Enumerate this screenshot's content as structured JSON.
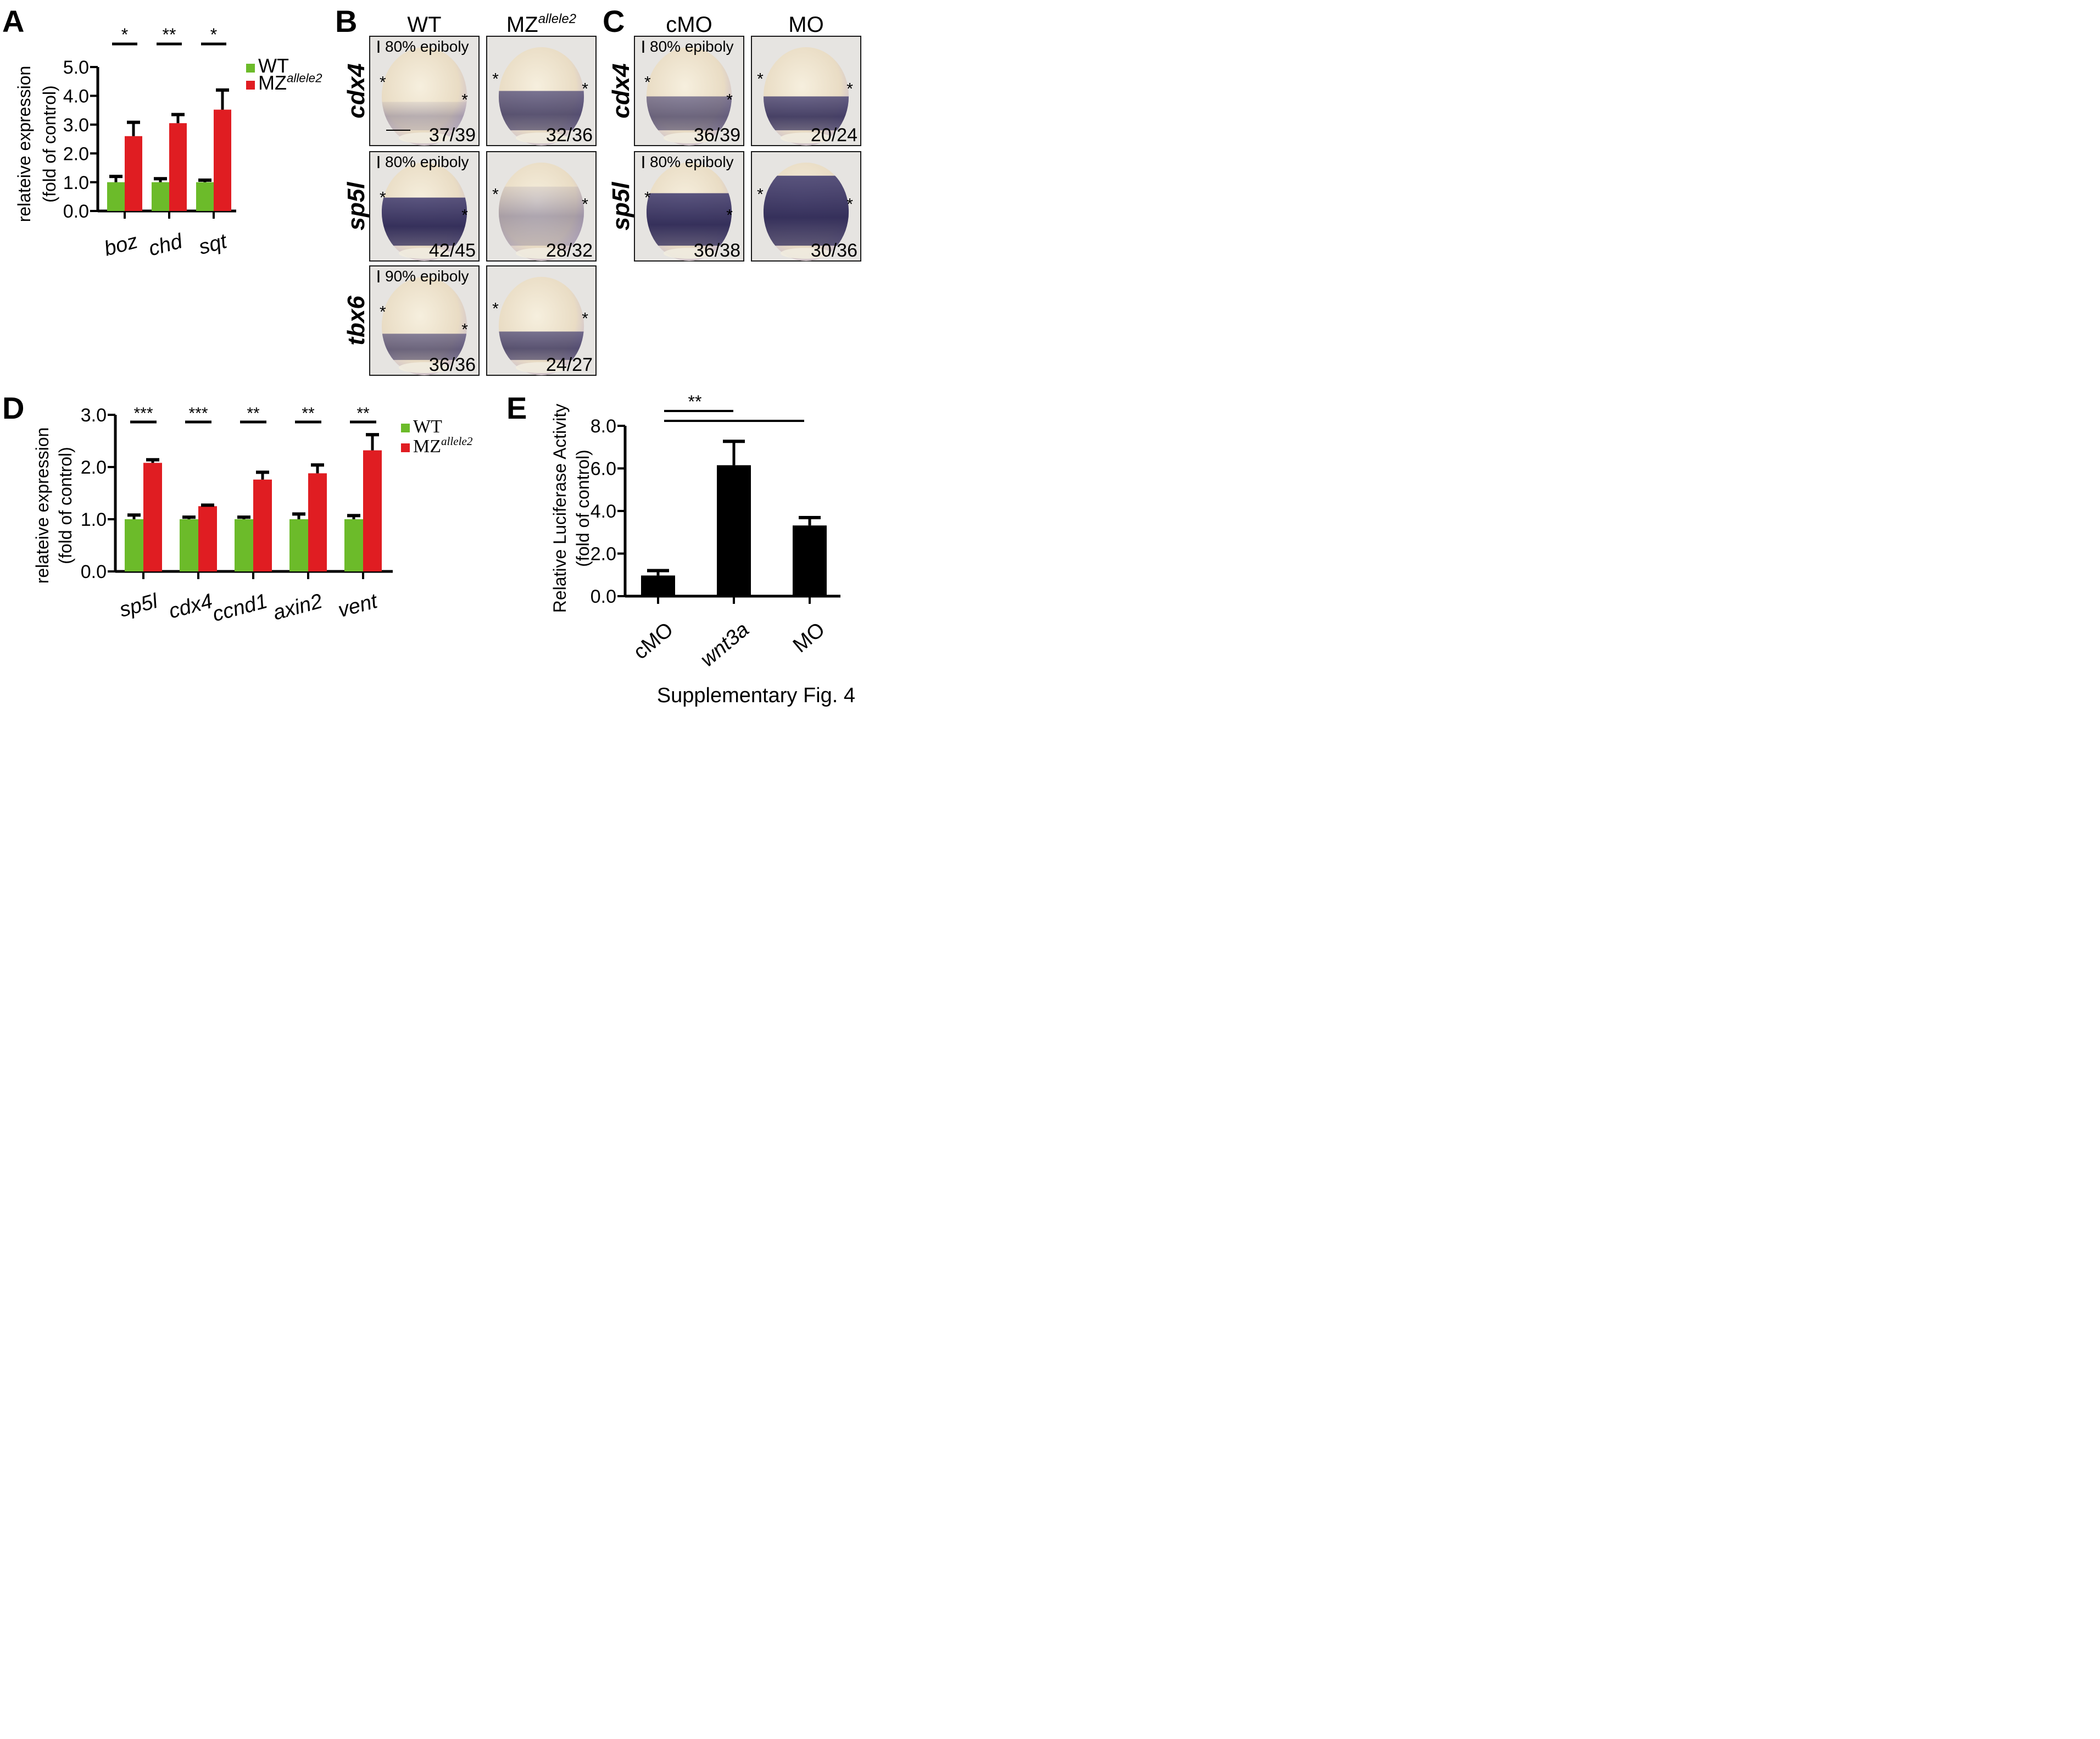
{
  "figure_caption": "Supplementary Fig. 4",
  "colors": {
    "wt": "#6cbb2a",
    "mz": "#e01d22",
    "black": "#000000",
    "embryo_bg": "#e8e6e2"
  },
  "panels": {
    "B": {
      "letter": "B",
      "columns": [
        {
          "text": "WT"
        },
        {
          "text": "MZ",
          "sup": "allele2"
        }
      ],
      "rows": [
        {
          "gene": "cdx4",
          "stage": "80% epiboly",
          "scale_bar": true,
          "counts": [
            "37/39",
            "32/36"
          ]
        },
        {
          "gene": "sp5l",
          "stage": "80% epiboly",
          "scale_bar": false,
          "counts": [
            "42/45",
            "28/32"
          ]
        },
        {
          "gene": "tbx6",
          "stage": "90% epiboly",
          "scale_bar": false,
          "counts": [
            "36/36",
            "24/27"
          ]
        }
      ],
      "marker": "*"
    },
    "C": {
      "letter": "C",
      "columns": [
        {
          "text": "cMO"
        },
        {
          "text": "MO"
        }
      ],
      "rows": [
        {
          "gene": "cdx4",
          "stage": "80% epiboly",
          "counts": [
            "36/39",
            "20/24"
          ]
        },
        {
          "gene": "sp5l",
          "stage": "80% epiboly",
          "counts": [
            "36/38",
            "30/36"
          ]
        }
      ],
      "marker": "*"
    }
  },
  "chart_data": [
    {
      "panel": "A",
      "type": "bar",
      "ylabel": [
        "relateive expression",
        "(fold of control)"
      ],
      "ylim": [
        0,
        5
      ],
      "yticks": [
        "0.0",
        "1.0",
        "2.0",
        "3.0",
        "4.0",
        "5.0"
      ],
      "categories": [
        "boz",
        "chd",
        "sqt"
      ],
      "series": [
        {
          "name": "WT",
          "color": "#6cbb2a",
          "values": [
            1.0,
            1.0,
            1.0
          ],
          "errors": [
            0.2,
            0.12,
            0.07
          ]
        },
        {
          "name": "MZ",
          "name_sup": "allele2",
          "color": "#e01d22",
          "values": [
            2.6,
            3.05,
            3.52
          ],
          "errors": [
            0.48,
            0.3,
            0.68
          ]
        }
      ],
      "significance": [
        "*",
        "**",
        "*"
      ],
      "legend": "top-right"
    },
    {
      "panel": "D",
      "type": "bar",
      "ylabel": [
        "relateive expression",
        "(fold of control)"
      ],
      "ylim": [
        0,
        3
      ],
      "yticks": [
        "0.0",
        "1.0",
        "2.0",
        "3.0"
      ],
      "categories": [
        "sp5l",
        "cdx4",
        "ccnd1",
        "axin2",
        "vent"
      ],
      "series": [
        {
          "name": "WT",
          "color": "#6cbb2a",
          "values": [
            1.0,
            1.0,
            1.0,
            1.0,
            1.0
          ],
          "errors": [
            0.08,
            0.04,
            0.04,
            0.1,
            0.07
          ]
        },
        {
          "name": "MZ",
          "name_sup": "allele2",
          "color": "#e01d22",
          "values": [
            2.08,
            1.25,
            1.76,
            1.88,
            2.32
          ],
          "errors": [
            0.06,
            0.02,
            0.14,
            0.16,
            0.3
          ]
        }
      ],
      "significance": [
        "***",
        "***",
        "**",
        "**",
        "**"
      ],
      "legend": "top-right"
    },
    {
      "panel": "E",
      "type": "bar",
      "ylabel": [
        "Relative Luciferase Activity",
        "(fold of control)"
      ],
      "ylim": [
        0,
        8
      ],
      "yticks": [
        "0.0",
        "2.0",
        "4.0",
        "6.0",
        "8.0"
      ],
      "categories": [
        "cMO",
        "wnt3a",
        "MO"
      ],
      "series": [
        {
          "name": "",
          "color": "#000000",
          "values": [
            0.97,
            6.15,
            3.32
          ],
          "errors": [
            0.23,
            1.12,
            0.37
          ]
        }
      ],
      "significance_label": "**"
    }
  ]
}
